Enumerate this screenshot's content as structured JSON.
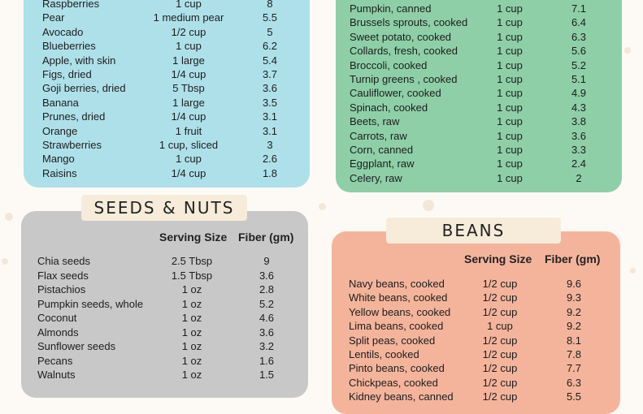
{
  "fruits": {
    "rows": [
      {
        "name": "Raspberries",
        "serving": "1 cup",
        "fiber": "8"
      },
      {
        "name": "Pear",
        "serving": "1 medium pear",
        "fiber": "5.5"
      },
      {
        "name": "Avocado",
        "serving": "1/2 cup",
        "fiber": "5"
      },
      {
        "name": "Blueberries",
        "serving": "1 cup",
        "fiber": "6.2"
      },
      {
        "name": "Apple, with skin",
        "serving": "1 large",
        "fiber": "5.4"
      },
      {
        "name": "Figs, dried",
        "serving": "1/4 cup",
        "fiber": "3.7"
      },
      {
        "name": "Goji berries, dried",
        "serving": "5 Tbsp",
        "fiber": "3.6"
      },
      {
        "name": "Banana",
        "serving": "1 large",
        "fiber": "3.5"
      },
      {
        "name": "Prunes, dried",
        "serving": "1/4 cup",
        "fiber": "3.1"
      },
      {
        "name": "Orange",
        "serving": "1 fruit",
        "fiber": "3.1"
      },
      {
        "name": "Strawberries",
        "serving": "1 cup, sliced",
        "fiber": "3"
      },
      {
        "name": "Mango",
        "serving": "1 cup",
        "fiber": "2.6"
      },
      {
        "name": "Raisins",
        "serving": "1/4 cup",
        "fiber": "1.8"
      }
    ]
  },
  "vegetables": {
    "rows": [
      {
        "name": "Pumpkin, canned",
        "serving": "1 cup",
        "fiber": "7.1"
      },
      {
        "name": "Brussels sprouts, cooked",
        "serving": "1 cup",
        "fiber": "6.4"
      },
      {
        "name": "Sweet potato, cooked",
        "serving": "1 cup",
        "fiber": "6.3"
      },
      {
        "name": "Collards, fresh, cooked",
        "serving": "1 cup",
        "fiber": "5.6"
      },
      {
        "name": "Broccoli, cooked",
        "serving": "1 cup",
        "fiber": "5.2"
      },
      {
        "name": "Turnip greens , cooked",
        "serving": "1 cup",
        "fiber": "5.1"
      },
      {
        "name": "Cauliflower, cooked",
        "serving": "1 cup",
        "fiber": "4.9"
      },
      {
        "name": "Spinach, cooked",
        "serving": "1 cup",
        "fiber": "4.3"
      },
      {
        "name": "Beets, raw",
        "serving": "1 cup",
        "fiber": "3.8"
      },
      {
        "name": "Carrots, raw",
        "serving": "1 cup",
        "fiber": "3.6"
      },
      {
        "name": "Corn, canned",
        "serving": "1 cup",
        "fiber": "3.3"
      },
      {
        "name": "Eggplant, raw",
        "serving": "1 cup",
        "fiber": "2.4"
      },
      {
        "name": "Celery, raw",
        "serving": "1 cup",
        "fiber": "2"
      }
    ]
  },
  "seeds_nuts": {
    "title": "SEEDS & NUTS",
    "serving_header": "Serving Size",
    "fiber_header": "Fiber (gm)",
    "rows": [
      {
        "name": "Chia seeds",
        "serving": "2.5 Tbsp",
        "fiber": "9"
      },
      {
        "name": "Flax seeds",
        "serving": "1.5 Tbsp",
        "fiber": "3.6"
      },
      {
        "name": "Pistachios",
        "serving": "1 oz",
        "fiber": "2.8"
      },
      {
        "name": "Pumpkin seeds, whole",
        "serving": "1 oz",
        "fiber": "5.2"
      },
      {
        "name": "Coconut",
        "serving": "1 oz",
        "fiber": "4.6"
      },
      {
        "name": "Almonds",
        "serving": "1 oz",
        "fiber": "3.6"
      },
      {
        "name": "Sunflower seeds",
        "serving": "1 oz",
        "fiber": "3.2"
      },
      {
        "name": "Pecans",
        "serving": "1 oz",
        "fiber": "1.6"
      },
      {
        "name": "Walnuts",
        "serving": "1 oz",
        "fiber": "1.5"
      }
    ]
  },
  "beans": {
    "title": "BEANS",
    "serving_header": "Serving Size",
    "fiber_header": "Fiber (gm)",
    "rows": [
      {
        "name": "Navy beans, cooked",
        "serving": "1/2 cup",
        "fiber": "9.6"
      },
      {
        "name": "White beans, cooked",
        "serving": "1/2 cup",
        "fiber": "9.3"
      },
      {
        "name": "Yellow beans, cooked",
        "serving": "1/2 cup",
        "fiber": "9.2"
      },
      {
        "name": "Lima beans, cooked",
        "serving": "1 cup",
        "fiber": "9.2"
      },
      {
        "name": "Split peas, cooked",
        "serving": "1/2 cup",
        "fiber": "8.1"
      },
      {
        "name": "Lentils, cooked",
        "serving": "1/2 cup",
        "fiber": "7.8"
      },
      {
        "name": "Pinto beans, cooked",
        "serving": "1/2 cup",
        "fiber": "7.7"
      },
      {
        "name": "Chickpeas, cooked",
        "serving": "1/2 cup",
        "fiber": "6.3"
      },
      {
        "name": "Kidney beans, canned",
        "serving": "1/2 cup",
        "fiber": "5.5"
      }
    ]
  },
  "colors": {
    "fruits_panel": "#aee0ea",
    "vegetables_panel": "#8ecfa8",
    "seeds_panel": "#c8c8c8",
    "beans_panel": "#f4b49c",
    "banner": "#f6ecd9"
  }
}
